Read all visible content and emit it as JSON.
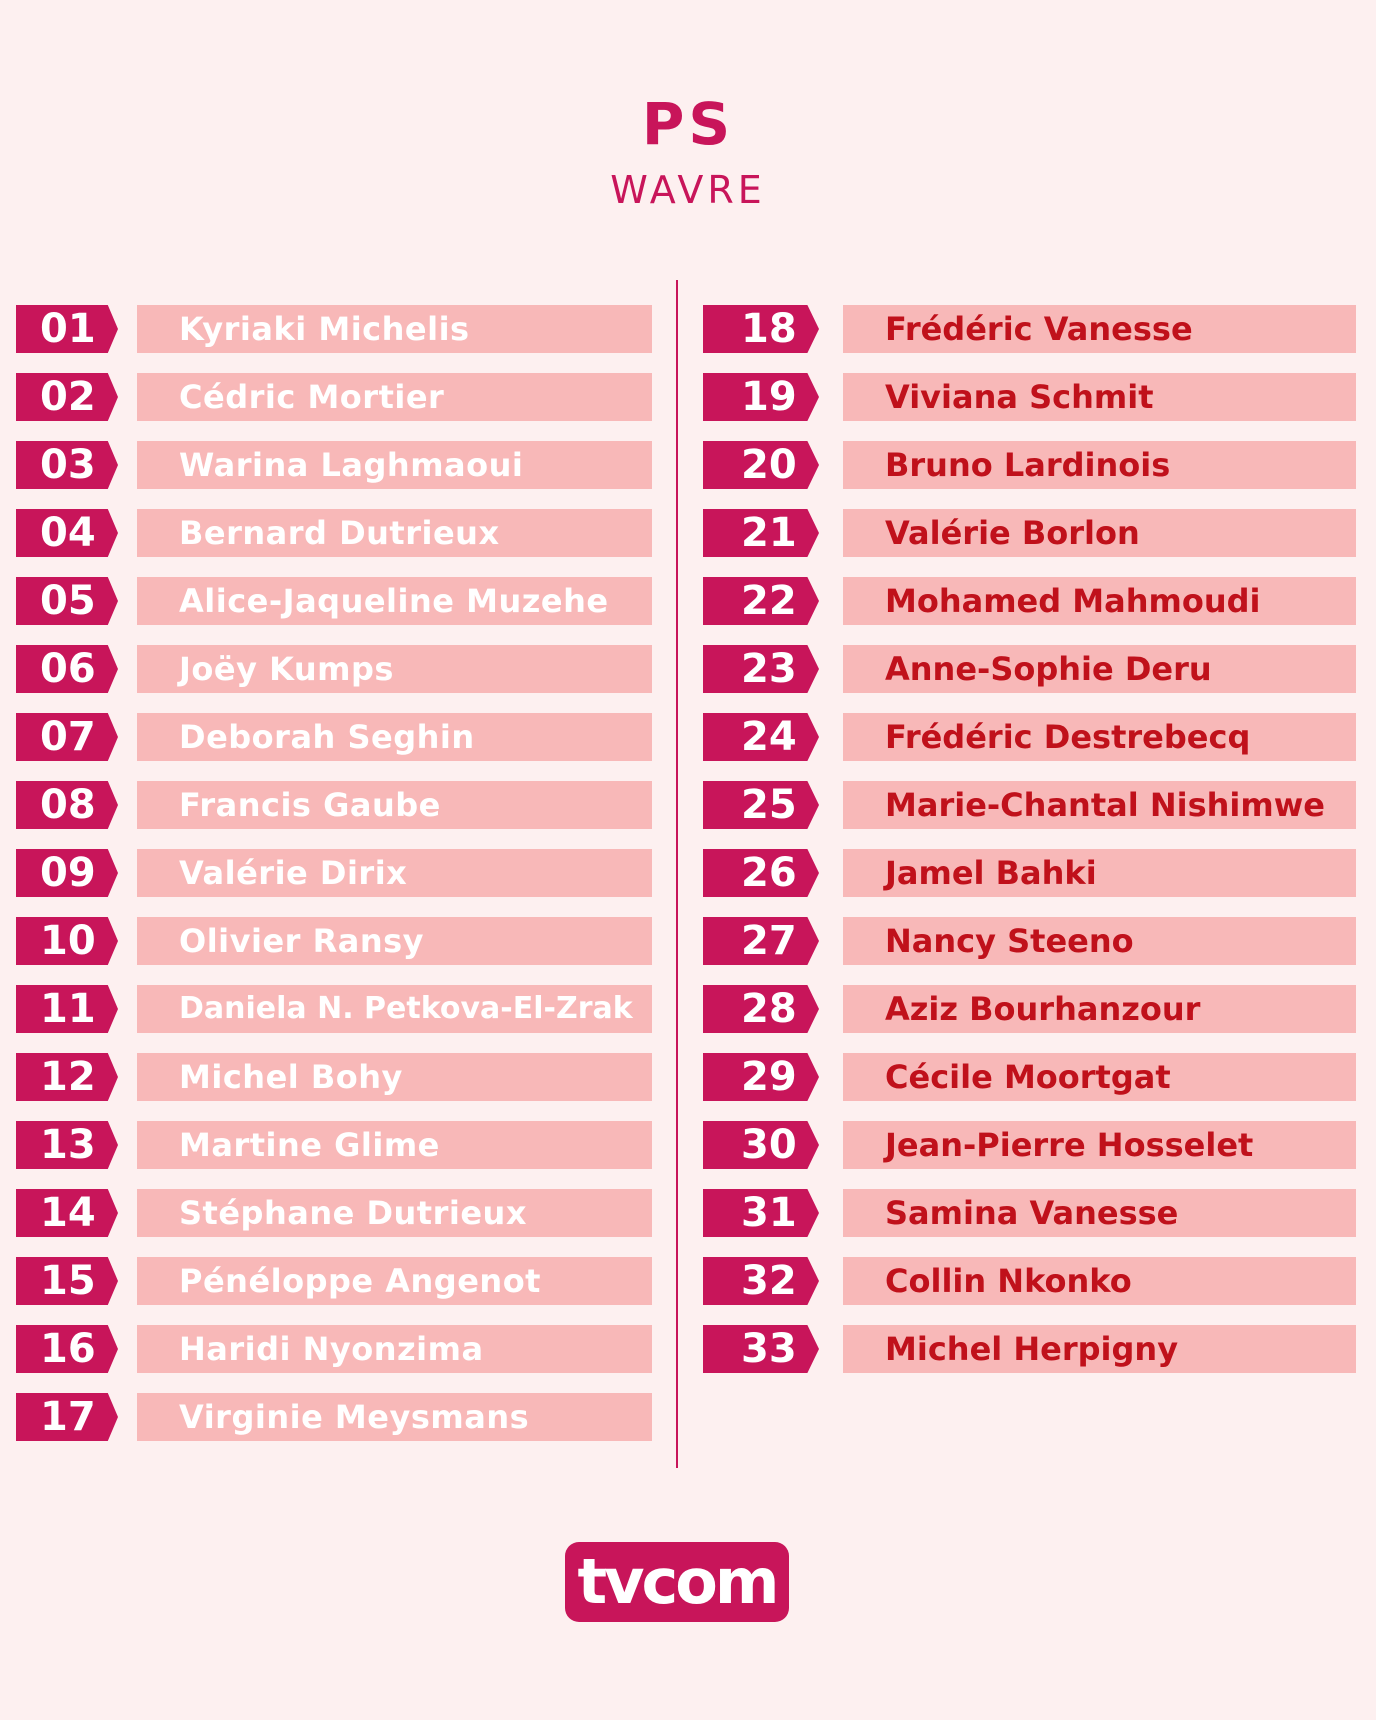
{
  "header": {
    "party": "PS",
    "city": "WAVRE"
  },
  "left_column": [
    {
      "number": "01",
      "name": "Kyriaki Michelis"
    },
    {
      "number": "02",
      "name": "Cédric Mortier"
    },
    {
      "number": "03",
      "name": "Warina Laghmaoui"
    },
    {
      "number": "04",
      "name": "Bernard Dutrieux"
    },
    {
      "number": "05",
      "name": "Alice-Jaqueline Muzehe"
    },
    {
      "number": "06",
      "name": "Joëy Kumps"
    },
    {
      "number": "07",
      "name": "Deborah Seghin"
    },
    {
      "number": "08",
      "name": "Francis Gaube"
    },
    {
      "number": "09",
      "name": "Valérie Dirix"
    },
    {
      "number": "10",
      "name": "Olivier Ransy"
    },
    {
      "number": "11",
      "name": "Daniela N. Petkova-El-Zrak"
    },
    {
      "number": "12",
      "name": "Michel Bohy"
    },
    {
      "number": "13",
      "name": "Martine Glime"
    },
    {
      "number": "14",
      "name": "Stéphane Dutrieux"
    },
    {
      "number": "15",
      "name": "Pénéloppe Angenot"
    },
    {
      "number": "16",
      "name": "Haridi Nyonzima"
    },
    {
      "number": "17",
      "name": "Virginie Meysmans"
    }
  ],
  "right_column": [
    {
      "number": "18",
      "name": "Frédéric Vanesse"
    },
    {
      "number": "19",
      "name": "Viviana Schmit"
    },
    {
      "number": "20",
      "name": "Bruno Lardinois"
    },
    {
      "number": "21",
      "name": "Valérie Borlon"
    },
    {
      "number": "22",
      "name": "Mohamed Mahmoudi"
    },
    {
      "number": "23",
      "name": "Anne-Sophie Deru"
    },
    {
      "number": "24",
      "name": "Frédéric Destrebecq"
    },
    {
      "number": "25",
      "name": "Marie-Chantal Nishimwe"
    },
    {
      "number": "26",
      "name": "Jamel Bahki"
    },
    {
      "number": "27",
      "name": "Nancy Steeno"
    },
    {
      "number": "28",
      "name": "Aziz Bourhanzour"
    },
    {
      "number": "29",
      "name": "Cécile Moortgat"
    },
    {
      "number": "30",
      "name": "Jean-Pierre Hosselet"
    },
    {
      "number": "31",
      "name": "Samina Vanesse"
    },
    {
      "number": "32",
      "name": "Collin Nkonko"
    },
    {
      "number": "33",
      "name": "Michel Herpigny"
    }
  ],
  "logo": {
    "text": "tvcom"
  },
  "colors": {
    "accent": "#c8155a",
    "name_bar": "#f8b8b8",
    "right_text": "#c0111b",
    "background": "#fdf0f0"
  }
}
